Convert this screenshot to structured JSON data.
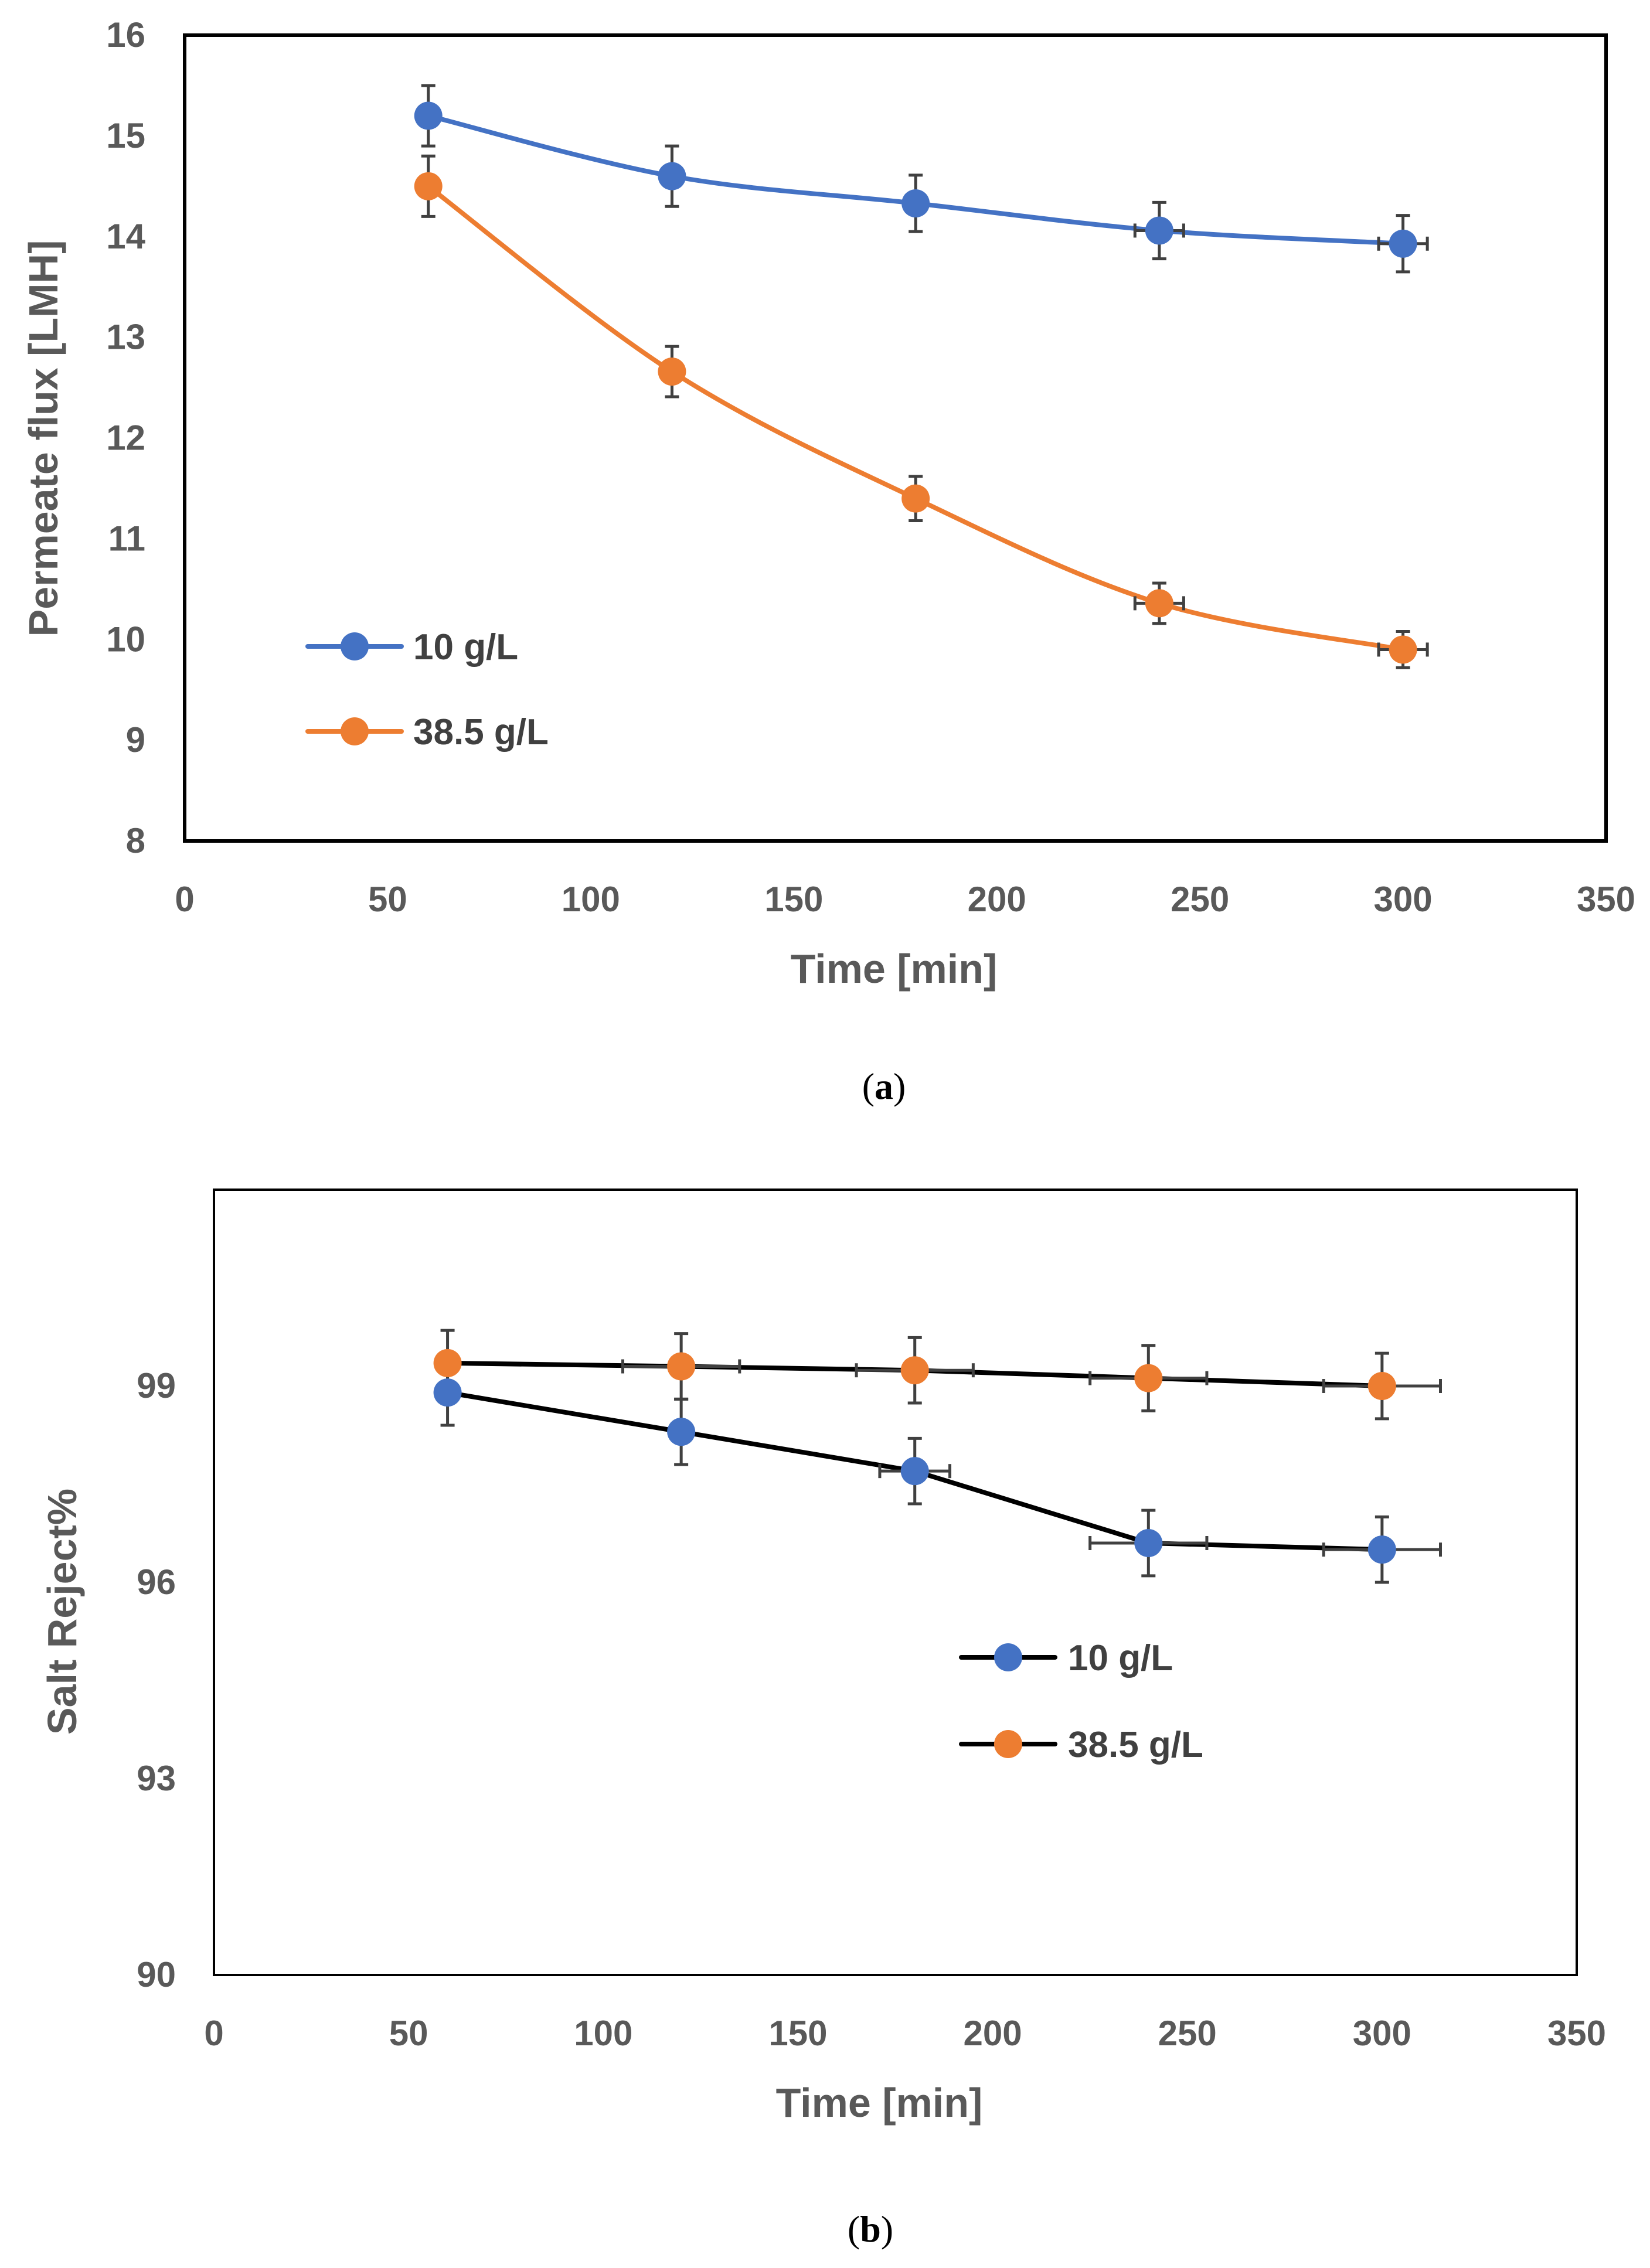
{
  "chart_data": [
    {
      "type": "line",
      "panel": "(a)",
      "caption_letter": "a",
      "xlabel": "Time [min]",
      "ylabel": "Permeate flux [LMH]",
      "xlim": [
        0,
        350
      ],
      "ylim": [
        8,
        16
      ],
      "xticks": [
        0,
        50,
        100,
        150,
        200,
        250,
        300,
        350
      ],
      "yticks": [
        8,
        9,
        10,
        11,
        12,
        13,
        14,
        15,
        16
      ],
      "grid": false,
      "legend_position": "center-left",
      "smooth": true,
      "error_bars": true,
      "series": [
        {
          "name": "10 g/L",
          "color": "#4472C4",
          "line_color": "#4472C4",
          "x": [
            60,
            120,
            180,
            240,
            300
          ],
          "values": [
            15.2,
            14.6,
            14.33,
            14.06,
            13.93
          ],
          "y_error": [
            0.3,
            0.3,
            0.28,
            0.28,
            0.28
          ],
          "x_error": [
            0,
            0,
            0,
            6,
            6
          ]
        },
        {
          "name": "38.5 g/L",
          "color": "#ED7D31",
          "line_color": "#ED7D31",
          "x": [
            60,
            120,
            180,
            240,
            300
          ],
          "values": [
            14.5,
            12.66,
            11.4,
            10.36,
            9.9
          ],
          "y_error": [
            0.3,
            0.25,
            0.22,
            0.2,
            0.18
          ],
          "x_error": [
            0,
            0,
            0,
            6,
            6
          ]
        }
      ]
    },
    {
      "type": "line",
      "panel": "(b)",
      "caption_letter": "b",
      "xlabel": "Time [min]",
      "ylabel": "Salt Reject%",
      "xlim": [
        0,
        350
      ],
      "ylim": [
        90,
        102
      ],
      "xticks": [
        0,
        50,
        100,
        150,
        200,
        250,
        300,
        350
      ],
      "yticks": [
        90,
        93,
        96,
        99
      ],
      "grid": false,
      "legend_position": "center-right",
      "smooth": false,
      "error_bars": true,
      "series": [
        {
          "name": "10 g/L",
          "color": "#4472C4",
          "line_color": "#000000",
          "x": [
            60,
            120,
            180,
            240,
            300
          ],
          "values": [
            98.9,
            98.3,
            97.7,
            96.6,
            96.5
          ],
          "y_error": [
            0.5,
            0.5,
            0.5,
            0.5,
            0.5
          ],
          "x_error": [
            0,
            0,
            9,
            15,
            15
          ]
        },
        {
          "name": "38.5 g/L",
          "color": "#ED7D31",
          "line_color": "#000000",
          "x": [
            60,
            120,
            180,
            240,
            300
          ],
          "values": [
            99.35,
            99.3,
            99.24,
            99.12,
            99.0
          ],
          "y_error": [
            0.5,
            0.5,
            0.5,
            0.5,
            0.5
          ],
          "x_error": [
            0,
            15,
            15,
            15,
            15
          ]
        }
      ]
    }
  ]
}
